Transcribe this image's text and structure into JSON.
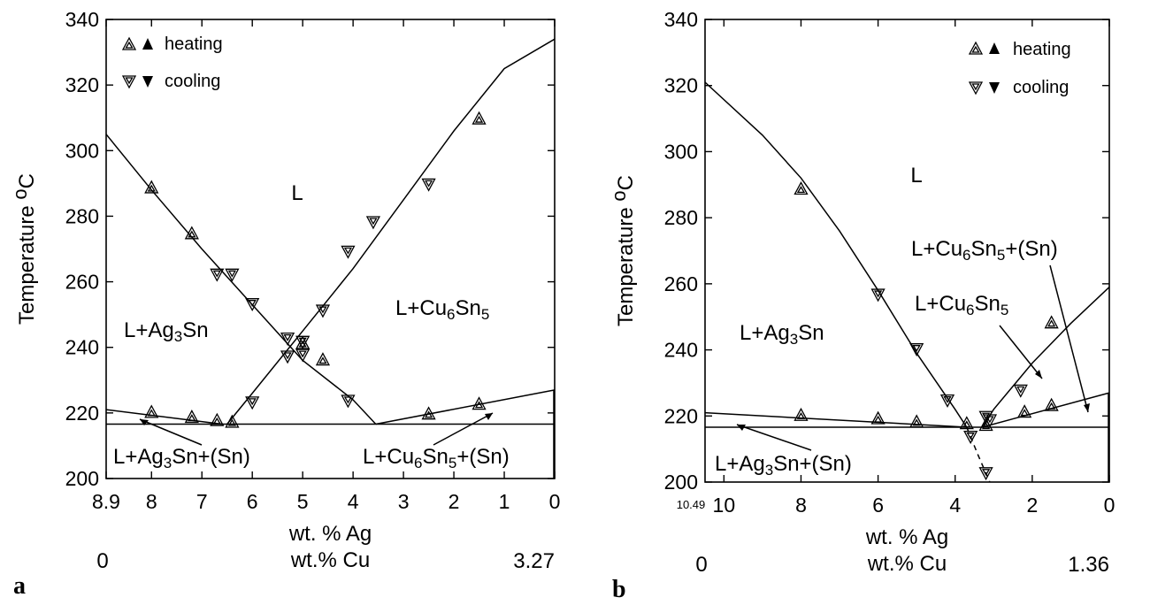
{
  "chart_data": [
    {
      "type": "scatter",
      "panel_label": "a",
      "ylabel": "Temperature",
      "ylabel_unit": "oC",
      "xlabel": "wt. % Ag",
      "xlabel2": "wt.% Cu",
      "x2_left": "0",
      "x2_right": "3.27",
      "xlim": [
        8.9,
        0
      ],
      "ylim": [
        200,
        340
      ],
      "yticks": [
        "200",
        "220",
        "240",
        "260",
        "280",
        "300",
        "320",
        "340"
      ],
      "xticks": [
        "8.9",
        "8",
        "7",
        "6",
        "5",
        "4",
        "3",
        "2",
        "1",
        "0"
      ],
      "legend": {
        "position": "top-left",
        "heating": "heating",
        "cooling": "cooling"
      },
      "regions": [
        "L",
        "L+Ag3Sn",
        "L+Cu6Sn5",
        "L+Ag3Sn+(Sn)",
        "L+Cu6Sn5+(Sn)"
      ],
      "curves": {
        "ag3sn_liquidus": [
          [
            8.9,
            305
          ],
          [
            8,
            288
          ],
          [
            7,
            270
          ],
          [
            6,
            253
          ],
          [
            5,
            236
          ],
          [
            4,
            224
          ],
          [
            3.55,
            216.6
          ]
        ],
        "cu6sn5_liquidus": [
          [
            6.5,
            216.6
          ],
          [
            6,
            226
          ],
          [
            5,
            245
          ],
          [
            4,
            264
          ],
          [
            3,
            285
          ],
          [
            2,
            306
          ],
          [
            1,
            325
          ],
          [
            0,
            334
          ]
        ],
        "ag3sn_sn_monovariant": [
          [
            8.9,
            221
          ],
          [
            6.6,
            216.6
          ]
        ],
        "cu6sn5_sn_monovariant": [
          [
            3.55,
            216.6
          ],
          [
            0,
            227
          ]
        ],
        "eutectic_isotherm": [
          [
            8.9,
            216.6
          ],
          [
            0,
            216.6
          ]
        ]
      },
      "heating_points": [
        [
          8,
          288.5
        ],
        [
          7.2,
          274.5
        ],
        [
          5,
          241
        ],
        [
          4.6,
          236
        ],
        [
          1.5,
          309.5
        ],
        [
          8,
          220
        ],
        [
          7.2,
          218.5
        ],
        [
          6.7,
          217.5
        ],
        [
          6.4,
          217
        ],
        [
          2.5,
          219.5
        ],
        [
          1.5,
          222.5
        ]
      ],
      "cooling_points": [
        [
          6.7,
          262.5
        ],
        [
          6.4,
          262.5
        ],
        [
          6,
          253.5
        ],
        [
          5.3,
          243
        ],
        [
          5,
          242
        ],
        [
          4.6,
          251.5
        ],
        [
          4.1,
          269.5
        ],
        [
          3.6,
          278.5
        ],
        [
          2.5,
          290
        ],
        [
          5.3,
          237.5
        ],
        [
          5,
          238
        ],
        [
          6,
          223.5
        ],
        [
          4.1,
          224
        ]
      ]
    },
    {
      "type": "scatter",
      "panel_label": "b",
      "ylabel": "Temperature",
      "ylabel_unit": "oC",
      "xlabel": "wt. % Ag",
      "xlabel2": "wt.% Cu",
      "x2_left": "0",
      "x2_right": "1.36",
      "x_left_label": "10.49",
      "xlim": [
        10.49,
        0
      ],
      "ylim": [
        200,
        340
      ],
      "yticks": [
        "200",
        "220",
        "240",
        "260",
        "280",
        "300",
        "320",
        "340"
      ],
      "xticks": [
        "10",
        "8",
        "6",
        "4",
        "2",
        "0"
      ],
      "legend": {
        "position": "top-right",
        "heating": "heating",
        "cooling": "cooling"
      },
      "regions": [
        "L",
        "L+Ag3Sn",
        "L+Cu6Sn5",
        "L+Cu6Sn5+(Sn)",
        "L+Ag3Sn+(Sn)"
      ],
      "curves": {
        "ag3sn_liquidus": [
          [
            10.49,
            321
          ],
          [
            9,
            305
          ],
          [
            8,
            292
          ],
          [
            7,
            276
          ],
          [
            6,
            258
          ],
          [
            5,
            239
          ],
          [
            4,
            222
          ],
          [
            3.7,
            216.6
          ]
        ],
        "cu6sn5_liquidus": [
          [
            3.3,
            216.6
          ],
          [
            3,
            222
          ],
          [
            2,
            236
          ],
          [
            1,
            248
          ],
          [
            0,
            259
          ]
        ],
        "ag3sn_sn_monovariant": [
          [
            10.49,
            221
          ],
          [
            3.7,
            216.6
          ]
        ],
        "cu6sn5_sn_monovariant": [
          [
            3.3,
            216.6
          ],
          [
            0,
            227
          ]
        ],
        "eutectic_isotherm": [
          [
            10.49,
            216.6
          ],
          [
            0,
            216.6
          ]
        ],
        "metastable_extension": [
          [
            3.7,
            216.6
          ],
          [
            3.4,
            208
          ],
          [
            3.1,
            200
          ]
        ]
      },
      "heating_points": [
        [
          8,
          288.5
        ],
        [
          1.5,
          248
        ],
        [
          8,
          220
        ],
        [
          6,
          219
        ],
        [
          5,
          218
        ],
        [
          3.7,
          217.5
        ],
        [
          3.2,
          217
        ],
        [
          2.2,
          221
        ],
        [
          1.5,
          223
        ]
      ],
      "cooling_points": [
        [
          6,
          257
        ],
        [
          5,
          240.5
        ],
        [
          4.2,
          225
        ],
        [
          3.6,
          214
        ],
        [
          3.2,
          203
        ],
        [
          3.2,
          220
        ],
        [
          3.1,
          219
        ],
        [
          2.3,
          228
        ]
      ]
    }
  ]
}
